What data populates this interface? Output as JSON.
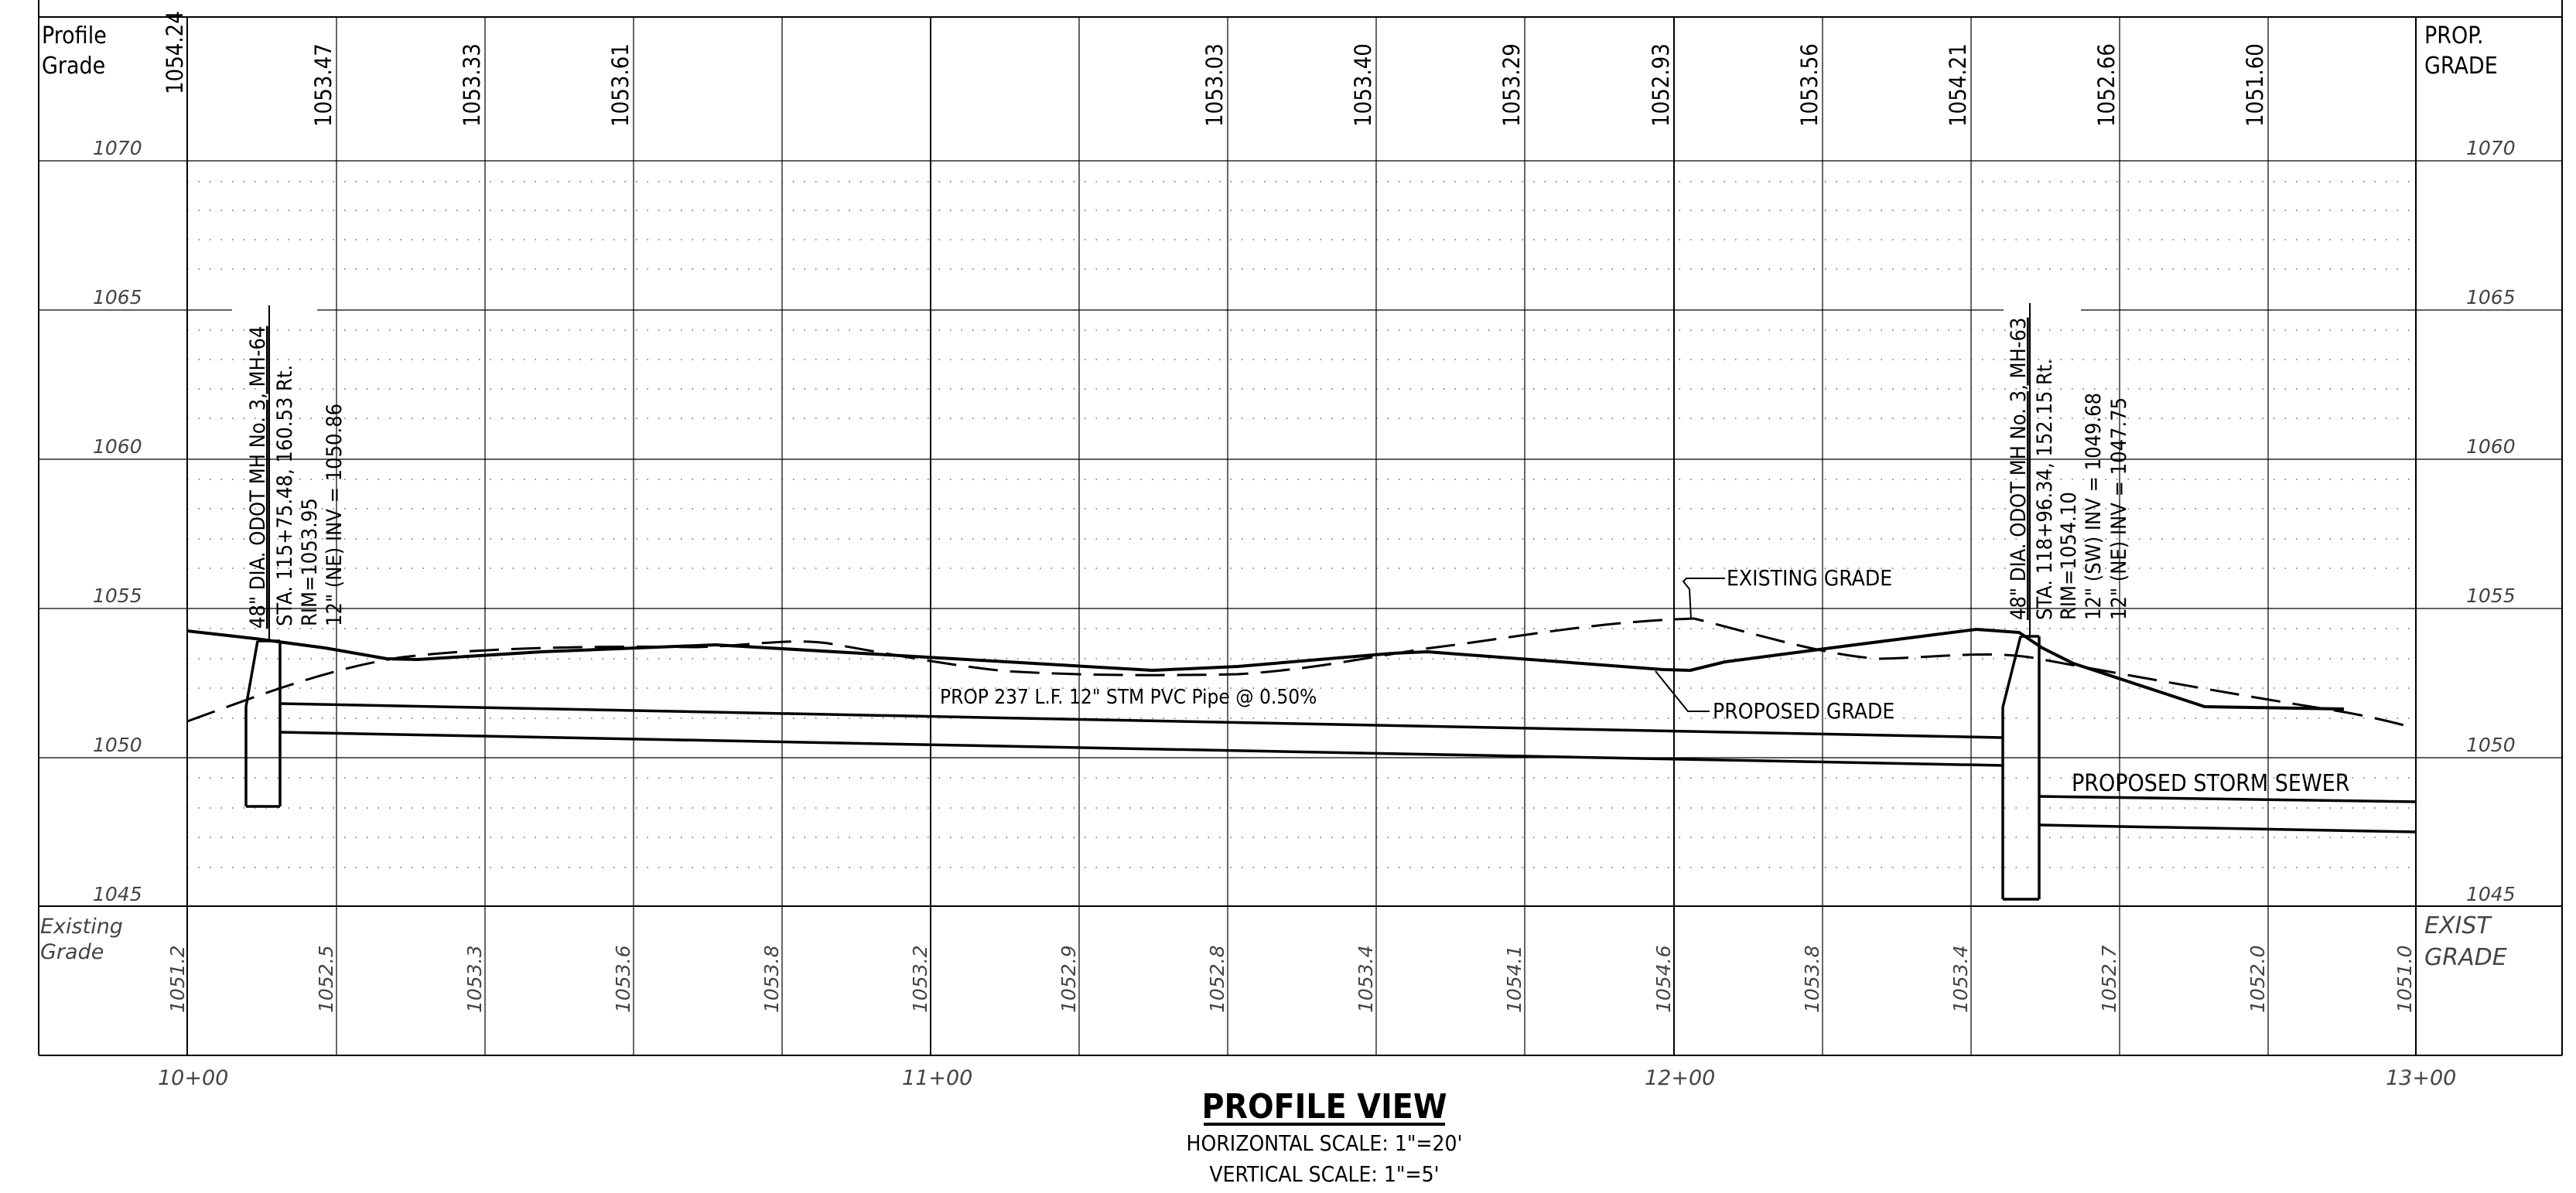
{
  "header_left": {
    "line1": "Profile",
    "line2": "Grade"
  },
  "header_right": {
    "line1": "PROP.",
    "line2": "GRADE"
  },
  "footer_left": {
    "line1": "Existing",
    "line2": "Grade"
  },
  "footer_right": {
    "line1": "EXIST",
    "line2": "GRADE"
  },
  "elevation_labels": [
    "1070",
    "1065",
    "1060",
    "1055",
    "1050",
    "1045"
  ],
  "proposed_grade_values": [
    "1054.24",
    "1053.47",
    "1053.33",
    "1053.61",
    "",
    "",
    "",
    "1053.03",
    "1053.40",
    "1053.29",
    "1052.93",
    "1053.56",
    "1054.21",
    "1052.66",
    "1051.60"
  ],
  "existing_grade_values": [
    "1051.2",
    "1052.5",
    "1053.3",
    "1053.6",
    "1053.8",
    "1053.2",
    "1052.9",
    "1052.8",
    "1053.4",
    "1054.1",
    "1054.6",
    "1053.8",
    "1053.4",
    "1052.7",
    "1052.0",
    "1051.0"
  ],
  "stations": [
    "10+00",
    "11+00",
    "12+00",
    "13+00"
  ],
  "manhole_left": {
    "line1": "48\" DIA. ODOT MH No. 3, MH-64",
    "line2": "STA. 115+75.48, 160.53 Rt.",
    "line3": "RIM=1053.95",
    "line4": "12\" (NE) INV = 1050.86"
  },
  "manhole_right": {
    "line1": "48\" DIA. ODOT MH No. 3, MH-63",
    "line2": "STA. 118+96.34, 152.15 Rt.",
    "line3": "RIM=1054.10",
    "line4": "12\" (SW) INV = 1049.68",
    "line5": "12\" (NE) INV = 1047.75"
  },
  "callouts": {
    "existing_grade": "EXISTING GRADE",
    "proposed_grade": "PROPOSED GRADE",
    "pipe": "PROP 237 L.F. 12\" STM PVC Pipe @ 0.50%",
    "storm_sewer": "PROPOSED STORM SEWER"
  },
  "title": {
    "main": "PROFILE VIEW",
    "horizontal_scale": "HORIZONTAL SCALE: 1\"=20'",
    "vertical_scale": "VERTICAL SCALE: 1\"=5'"
  }
}
